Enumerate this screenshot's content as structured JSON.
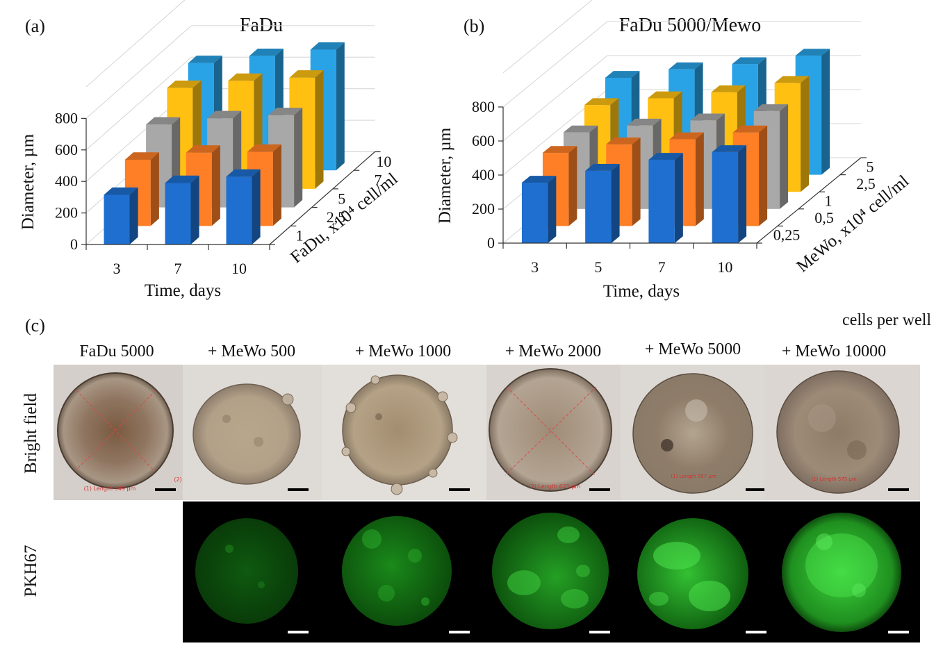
{
  "colors": {
    "blue": "#1e6fd0",
    "orange": "#ff7f27",
    "gray": "#a8a8a8",
    "yellow": "#ffc012",
    "cyan": "#29a2e6",
    "text": "#111111",
    "scale_bar_light": "#000000",
    "scale_bar_dark": "#ffffff"
  },
  "chart_data": [
    {
      "type": "bar",
      "panel_label": "(a)",
      "title": "FaDu",
      "xlabel": "Time, days",
      "ylabel": "Diameter, µm",
      "zlabel": "FaDu, x10⁴ cell/ml",
      "categories": [
        "3",
        "7",
        "10"
      ],
      "yticks": [
        "0",
        "200",
        "400",
        "600",
        "800"
      ],
      "ylim": [
        0,
        1000
      ],
      "series": [
        {
          "name": "1",
          "values": [
            315,
            390,
            430
          ]
        },
        {
          "name": "2,5",
          "values": [
            420,
            465,
            470
          ]
        },
        {
          "name": "5",
          "values": [
            525,
            565,
            585
          ]
        },
        {
          "name": "7",
          "values": [
            640,
            685,
            705
          ]
        },
        {
          "name": "10",
          "values": [
            680,
            725,
            765
          ]
        }
      ]
    },
    {
      "type": "bar",
      "panel_label": "(b)",
      "title": "FaDu 5000/Mewo",
      "xlabel": "Time, days",
      "ylabel": "Diameter, µm",
      "zlabel": "MeWo, x10⁴ cell/ml",
      "categories": [
        "3",
        "5",
        "7",
        "10"
      ],
      "yticks": [
        "0",
        "200",
        "400",
        "600",
        "800"
      ],
      "ylim": [
        0,
        1000
      ],
      "series": [
        {
          "name": "0,25",
          "values": [
            355,
            425,
            490,
            535
          ]
        },
        {
          "name": "0,5",
          "values": [
            430,
            480,
            510,
            550
          ]
        },
        {
          "name": "1",
          "values": [
            450,
            490,
            520,
            575
          ]
        },
        {
          "name": "2,5",
          "values": [
            510,
            550,
            585,
            640
          ]
        },
        {
          "name": "5",
          "values": [
            570,
            620,
            650,
            700
          ]
        }
      ]
    }
  ],
  "panel_c": {
    "label": "(c)",
    "cells_note": "cells per well",
    "columns": [
      "FaDu 5000",
      "+ MeWo 500",
      "+ MeWo 1000",
      "+ MeWo 2000",
      "+ MeWo 5000",
      "+ MeWo 10000"
    ],
    "rows": {
      "bright": "Bright field",
      "fluor": "PKH67"
    },
    "measurements": [
      "(1) Length 549 µm",
      "(2)",
      "(2) Length 621 µm",
      "(1) Length 557 µm",
      "(1) Length 575 µm"
    ]
  }
}
